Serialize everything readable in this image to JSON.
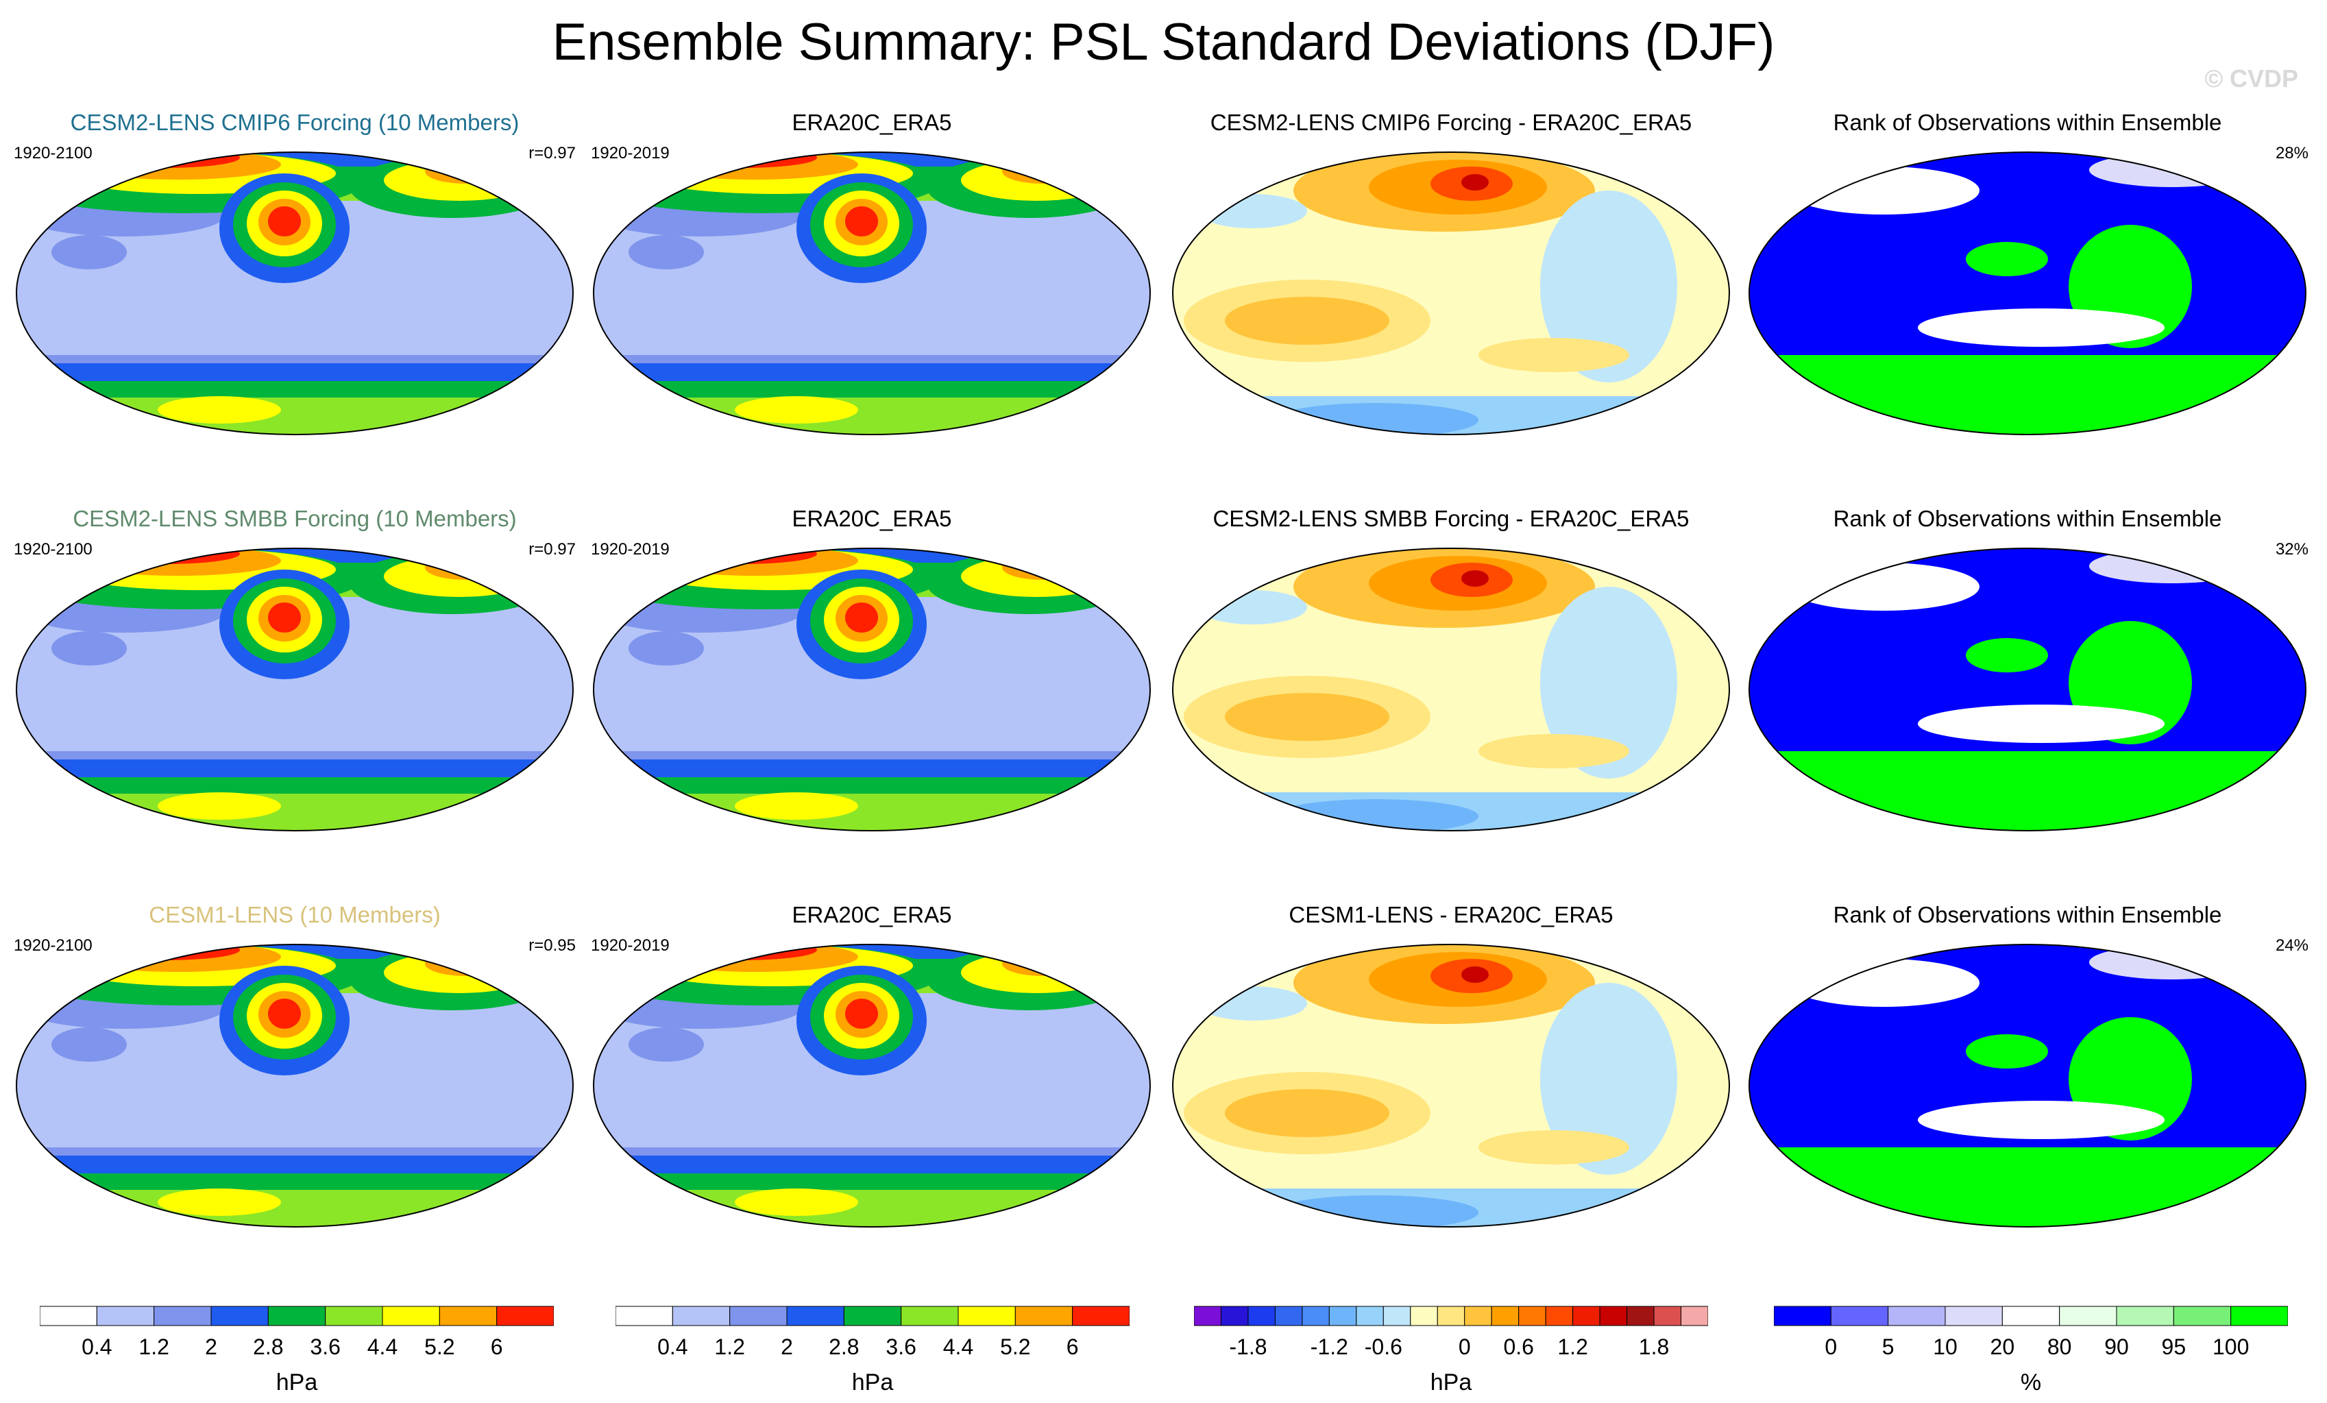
{
  "title": "Ensemble Summary: PSL Standard Deviations (DJF)",
  "watermark": "© CVDP",
  "rows": [
    {
      "model": {
        "title": "CESM2-LENS CMIP6 Forcing (10 Members)",
        "title_color": "#1f7090",
        "years": "1920-2100",
        "r": "r=0.97"
      },
      "obs": {
        "title": "ERA20C_ERA5",
        "years": "1920-2019"
      },
      "diff": {
        "title": "CESM2-LENS CMIP6 Forcing - ERA20C_ERA5"
      },
      "rank": {
        "title": "Rank of Observations within Ensemble",
        "pct": "28%"
      }
    },
    {
      "model": {
        "title": "CESM2-LENS SMBB Forcing (10 Members)",
        "title_color": "#5f8a6c",
        "years": "1920-2100",
        "r": "r=0.97"
      },
      "obs": {
        "title": "ERA20C_ERA5",
        "years": "1920-2019"
      },
      "diff": {
        "title": "CESM2-LENS SMBB Forcing - ERA20C_ERA5"
      },
      "rank": {
        "title": "Rank of Observations within Ensemble",
        "pct": "32%"
      }
    },
    {
      "model": {
        "title": "CESM1-LENS (10 Members)",
        "title_color": "#d8c27a",
        "years": "1920-2100",
        "r": "r=0.95"
      },
      "obs": {
        "title": "ERA20C_ERA5",
        "years": "1920-2019"
      },
      "diff": {
        "title": "CESM1-LENS - ERA20C_ERA5"
      },
      "rank": {
        "title": "Rank of Observations within Ensemble",
        "pct": "24%"
      }
    }
  ],
  "colorbars": [
    {
      "colors": [
        "#ffffff",
        "#b4c4f8",
        "#7f94ec",
        "#1e5cf0",
        "#00b43c",
        "#8ce628",
        "#ffff00",
        "#ffa500",
        "#ff2000"
      ],
      "ticks": [
        "0.4",
        "1.2",
        "2",
        "2.8",
        "3.6",
        "4.4",
        "5.2",
        "6"
      ],
      "label": "hPa"
    },
    {
      "colors": [
        "#ffffff",
        "#b4c4f8",
        "#7f94ec",
        "#1e5cf0",
        "#00b43c",
        "#8ce628",
        "#ffff00",
        "#ffa500",
        "#ff2000"
      ],
      "ticks": [
        "0.4",
        "1.2",
        "2",
        "2.8",
        "3.6",
        "4.4",
        "5.2",
        "6"
      ],
      "label": "hPa"
    },
    {
      "colors": [
        "#7a10d8",
        "#2814d8",
        "#1c3cf0",
        "#3268f0",
        "#4a8cf8",
        "#6eb4fa",
        "#96d2fa",
        "#c0e6fa",
        "#fffcc0",
        "#ffe680",
        "#ffc43c",
        "#ffa000",
        "#ff7800",
        "#ff4b00",
        "#f01e00",
        "#c80000",
        "#a01414",
        "#dc5050",
        "#f4a8a8"
      ],
      "ticks": [
        "-1.8",
        "-1.2",
        "-0.6",
        "0",
        "0.6",
        "1.2",
        "1.8"
      ],
      "label": "hPa"
    },
    {
      "colors": [
        "#0000ff",
        "#6464ff",
        "#b4b4f8",
        "#dcdcfa",
        "#ffffff",
        "#e6ffe6",
        "#b4f8b4",
        "#78f078",
        "#00ff00"
      ],
      "ticks": [
        "0",
        "5",
        "10",
        "20",
        "80",
        "90",
        "95",
        "100"
      ],
      "label": "%"
    }
  ],
  "colors": {
    "ocean_low": "#b4c4f8",
    "mid": "#7f94ec",
    "high": "#1e5cf0",
    "green": "#00b43c",
    "lime": "#8ce628",
    "yellow": "#ffff00",
    "orange": "#ffa500",
    "red": "#ff2000",
    "rank_blue": "#0000ff",
    "rank_green": "#00ff00",
    "diff_pale_yellow": "#fffcc0",
    "diff_pale_blue": "#c0e6fa"
  }
}
